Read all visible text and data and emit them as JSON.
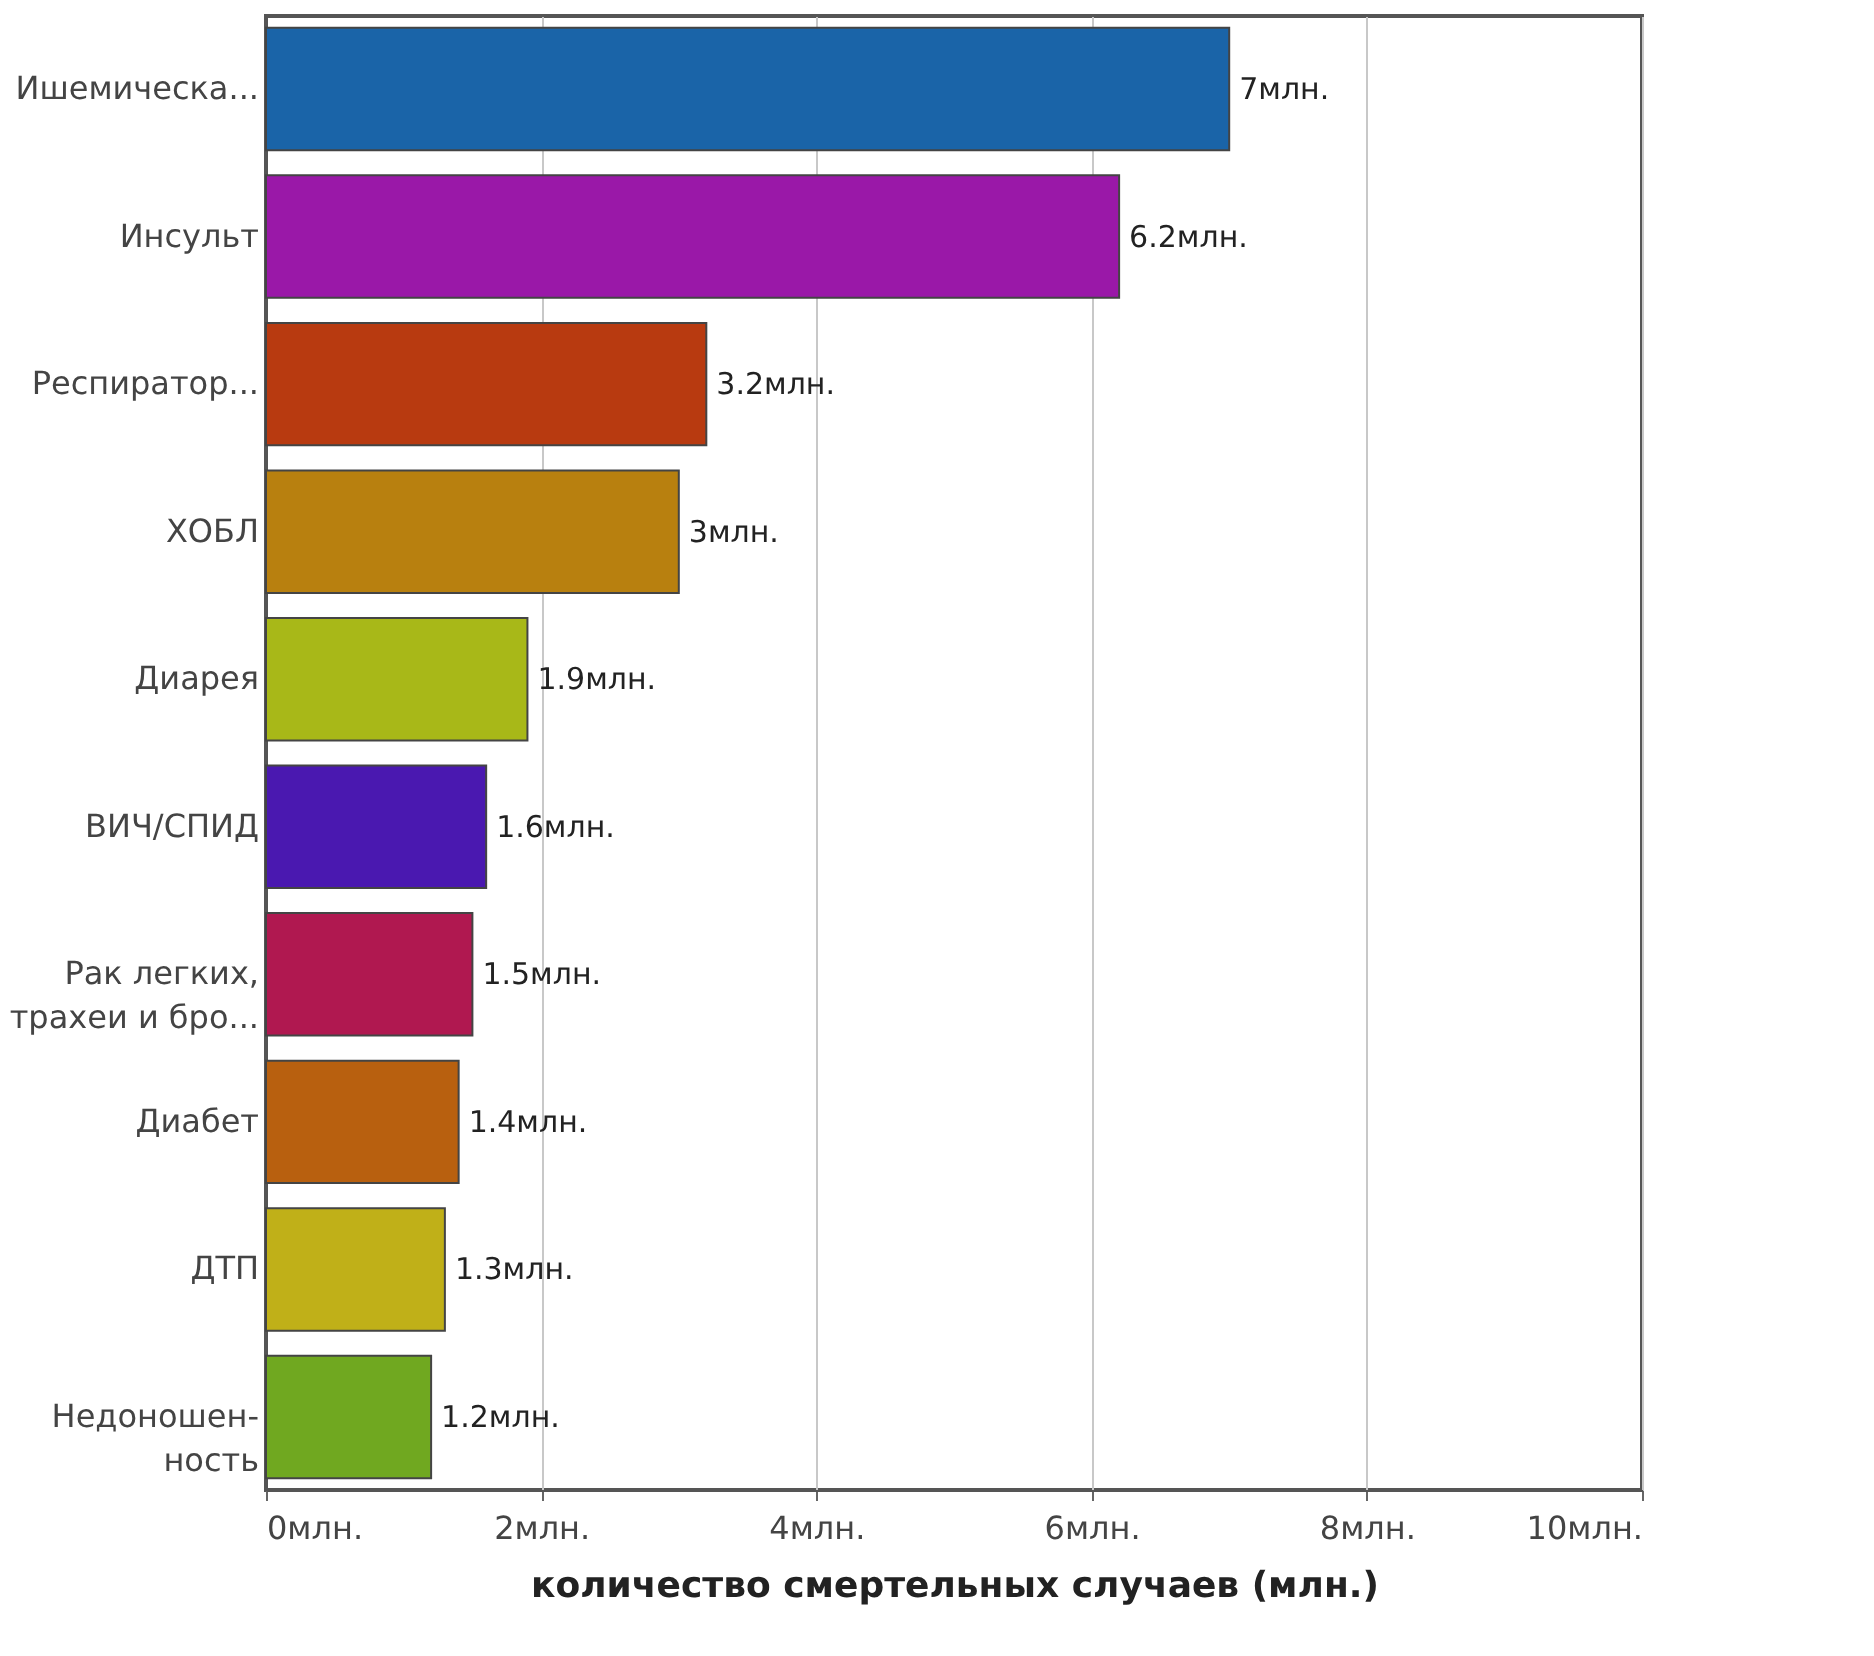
{
  "chart_data": {
    "type": "bar",
    "orientation": "horizontal",
    "categories": [
      "Ишемическа...",
      "Инсульт",
      "Респиратор...",
      "ХОБЛ",
      "Диарея",
      "ВИЧ/СПИД",
      "Рак легких,\nтрахеи и бро...",
      "Диабет",
      "ДТП",
      "Недоношен-\nность"
    ],
    "values": [
      7,
      6.2,
      3.2,
      3,
      1.9,
      1.6,
      1.5,
      1.4,
      1.3,
      1.2
    ],
    "value_labels": [
      "7млн.",
      "6.2млн.",
      "3.2млн.",
      "3млн.",
      "1.9млн.",
      "1.6млн.",
      "1.5млн.",
      "1.4млн.",
      "1.3млн.",
      "1.2млн."
    ],
    "colors": [
      "#1a64a8",
      "#9a18a8",
      "#b83a10",
      "#b8800f",
      "#a8b818",
      "#4a18b0",
      "#b01850",
      "#b8600f",
      "#c0b018",
      "#70a820"
    ],
    "xlim": [
      0,
      10
    ],
    "xticks": [
      {
        "value": 0,
        "label": "0млн."
      },
      {
        "value": 2,
        "label": "2млн."
      },
      {
        "value": 4,
        "label": "4млн."
      },
      {
        "value": 6,
        "label": "6млн."
      },
      {
        "value": 8,
        "label": "8млн."
      },
      {
        "value": 10,
        "label": "10млн."
      }
    ],
    "xlabel": "количество смертельных случаев (млн.)",
    "grid": "x"
  }
}
